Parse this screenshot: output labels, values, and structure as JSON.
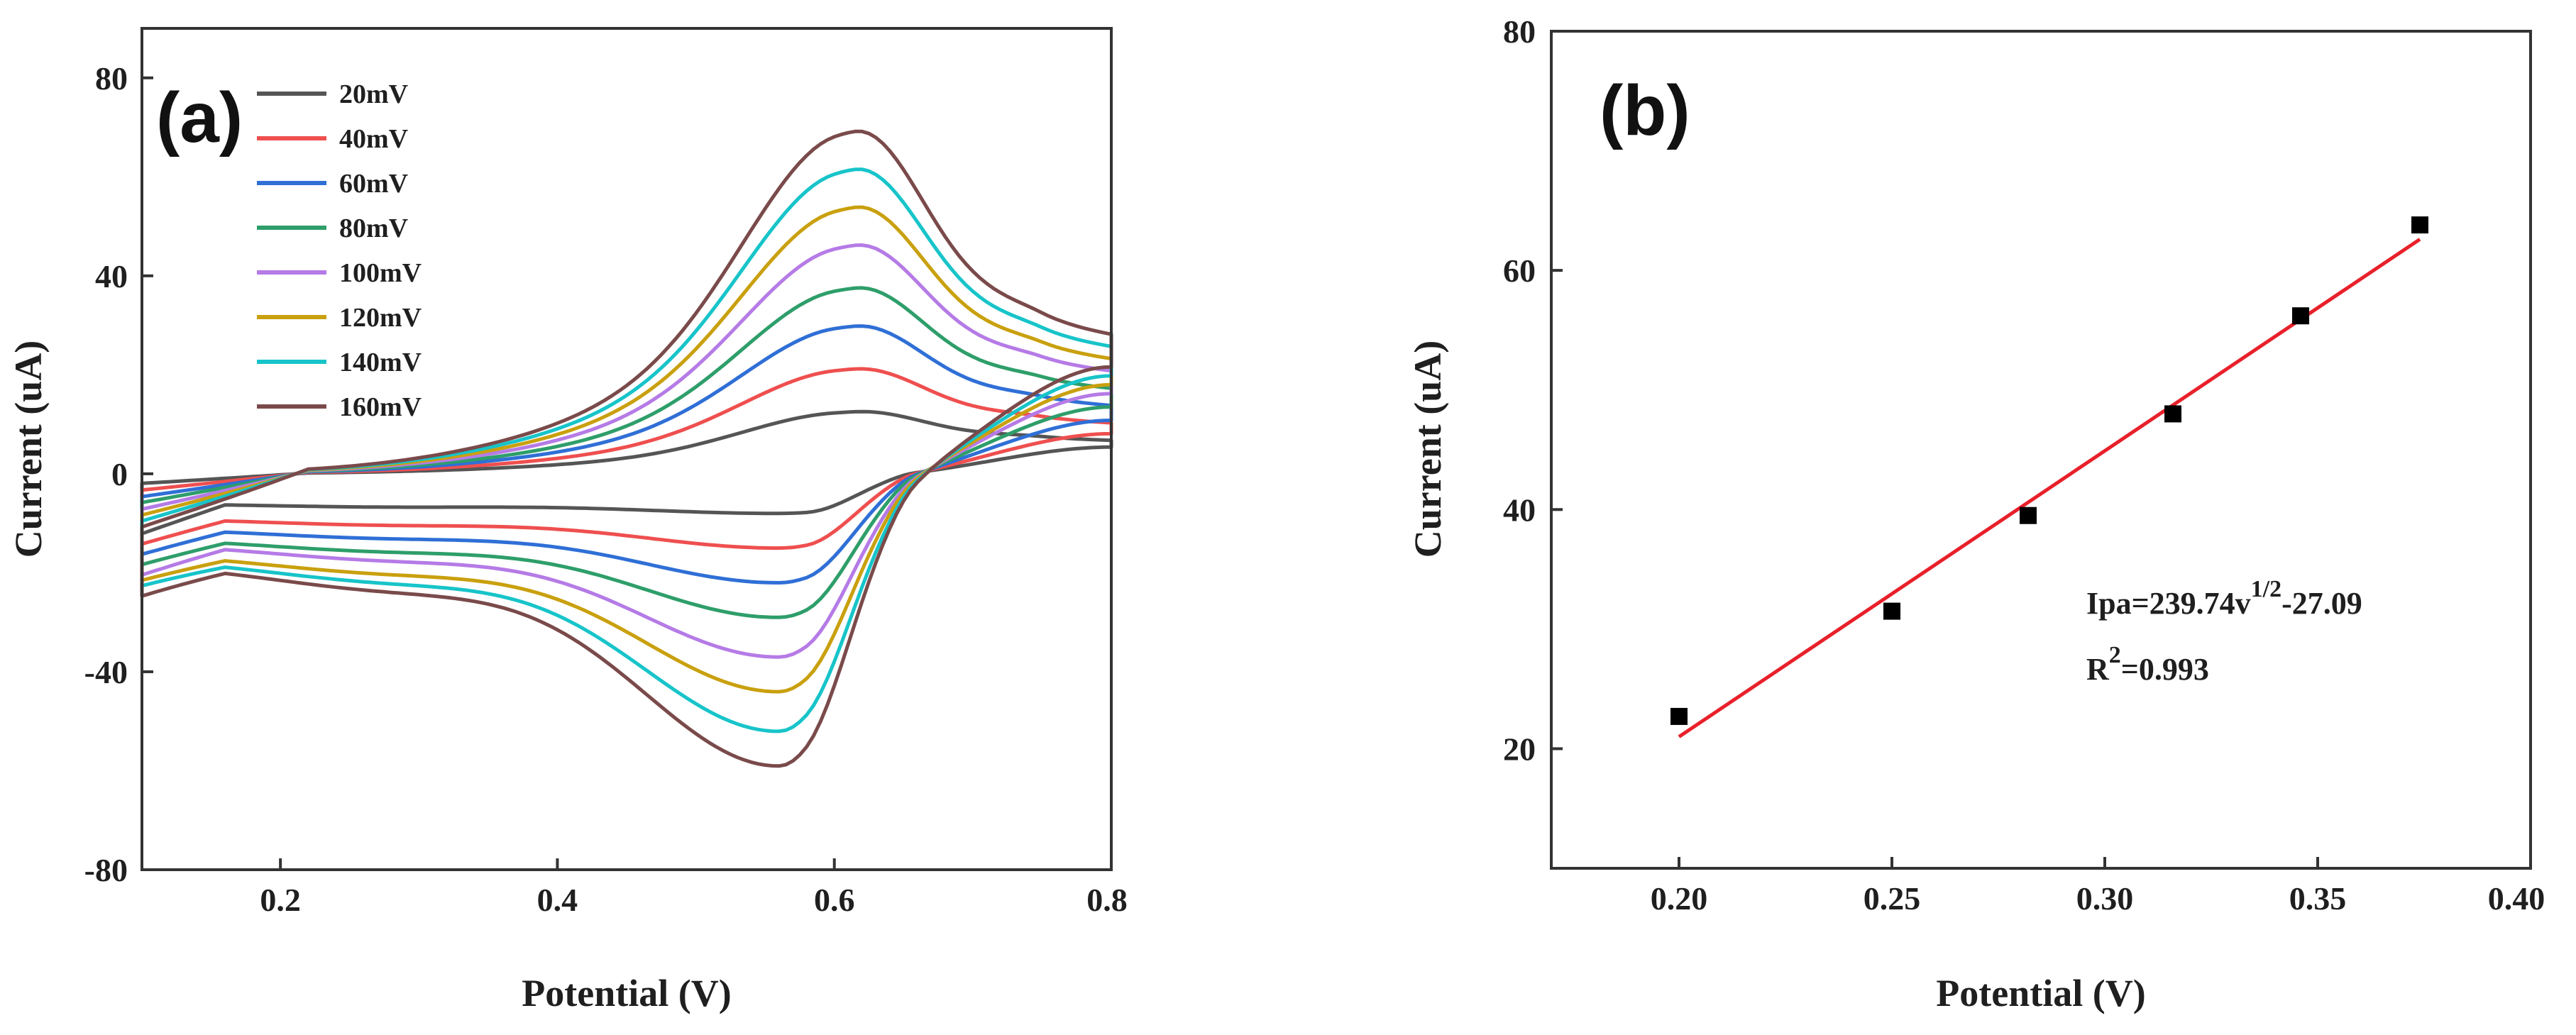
{
  "chart_data": [
    {
      "type": "line",
      "panel_label": "(a)",
      "xlabel": "Potential (V)",
      "ylabel": "Current (uA)",
      "xlim": [
        0.1,
        0.8
      ],
      "ylim": [
        -80,
        90
      ],
      "xticks": [
        0.2,
        0.4,
        0.6,
        0.8
      ],
      "xtick_labels": [
        "0.2",
        "0.4",
        "0.6",
        "0.8"
      ],
      "yticks": [
        -80,
        -40,
        0,
        40,
        80
      ],
      "ytick_labels": [
        "-80",
        "-40",
        "0",
        "40",
        "80"
      ],
      "legend_position": "top-left",
      "series": [
        {
          "name": "20mV",
          "color": "#555555",
          "ox_peak": 13,
          "red_peak": -8,
          "ox_end": 6,
          "red_start": -12,
          "red_tail": -6
        },
        {
          "name": "40mV",
          "color": "#ef4f4f",
          "ox_peak": 22,
          "red_peak": -15,
          "ox_end": 9,
          "red_start": -14,
          "red_tail": -9
        },
        {
          "name": "60mV",
          "color": "#2f6fd6",
          "ox_peak": 31,
          "red_peak": -22,
          "ox_end": 12,
          "red_start": -16,
          "red_tail": -11
        },
        {
          "name": "80mV",
          "color": "#2e9e6a",
          "ox_peak": 39,
          "red_peak": -29,
          "ox_end": 15,
          "red_start": -18,
          "red_tail": -13
        },
        {
          "name": "100mV",
          "color": "#b57be6",
          "ox_peak": 48,
          "red_peak": -37,
          "ox_end": 18,
          "red_start": -20,
          "red_tail": -14
        },
        {
          "name": "120mV",
          "color": "#c9a00e",
          "ox_peak": 56,
          "red_peak": -44,
          "ox_end": 20,
          "red_start": -21,
          "red_tail": -16
        },
        {
          "name": "140mV",
          "color": "#17c4c9",
          "ox_peak": 64,
          "red_peak": -52,
          "ox_end": 22,
          "red_start": -22,
          "red_tail": -17
        },
        {
          "name": "160mV",
          "color": "#7a4a4a",
          "ox_peak": 72,
          "red_peak": -59,
          "ox_end": 24,
          "red_start": -24,
          "red_tail": -18
        }
      ]
    },
    {
      "type": "scatter",
      "panel_label": "(b)",
      "xlabel": "Potential (V)",
      "ylabel": "Current (uA)",
      "xlim": [
        0.17,
        0.4
      ],
      "ylim": [
        10,
        80
      ],
      "xticks": [
        0.2,
        0.25,
        0.3,
        0.35,
        0.4
      ],
      "xtick_labels": [
        "0.20",
        "0.25",
        "0.30",
        "0.35",
        "0.40"
      ],
      "yticks": [
        20,
        40,
        60,
        80
      ],
      "ytick_labels": [
        "20",
        "40",
        "60",
        "80"
      ],
      "points": {
        "x": [
          0.2,
          0.25,
          0.282,
          0.316,
          0.346,
          0.374
        ],
        "y": [
          22.7,
          31.5,
          39.5,
          48.0,
          56.2,
          63.8
        ]
      },
      "marker_color": "#000000",
      "fit": {
        "x": [
          0.2,
          0.374
        ],
        "y": [
          21.0,
          62.6
        ],
        "color": "#e8202a"
      },
      "equation": {
        "main": "Ipa=239.74v",
        "sup": "1/2",
        "rest": "-27.09"
      },
      "r2": {
        "main": "R",
        "sup": "2",
        "rest": "=0.993"
      }
    }
  ]
}
